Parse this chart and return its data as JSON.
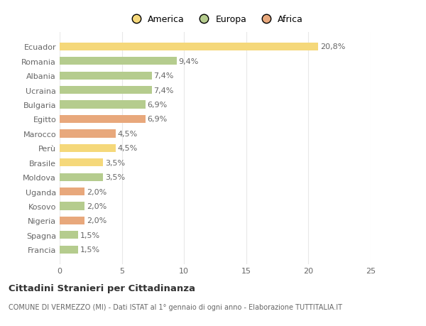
{
  "categories": [
    "Francia",
    "Spagna",
    "Nigeria",
    "Kosovo",
    "Uganda",
    "Moldova",
    "Brasile",
    "Perù",
    "Marocco",
    "Egitto",
    "Bulgaria",
    "Ucraina",
    "Albania",
    "Romania",
    "Ecuador"
  ],
  "values": [
    1.5,
    1.5,
    2.0,
    2.0,
    2.0,
    3.5,
    3.5,
    4.5,
    4.5,
    6.9,
    6.9,
    7.4,
    7.4,
    9.4,
    20.8
  ],
  "labels": [
    "1,5%",
    "1,5%",
    "2,0%",
    "2,0%",
    "2,0%",
    "3,5%",
    "3,5%",
    "4,5%",
    "4,5%",
    "6,9%",
    "6,9%",
    "7,4%",
    "7,4%",
    "9,4%",
    "20,8%"
  ],
  "colors": [
    "#b5cc8e",
    "#b5cc8e",
    "#e8a87c",
    "#b5cc8e",
    "#e8a87c",
    "#b5cc8e",
    "#f5d87a",
    "#f5d87a",
    "#e8a87c",
    "#e8a87c",
    "#b5cc8e",
    "#b5cc8e",
    "#b5cc8e",
    "#b5cc8e",
    "#f5d87a"
  ],
  "legend": [
    {
      "label": "America",
      "color": "#f5d87a"
    },
    {
      "label": "Europa",
      "color": "#b5cc8e"
    },
    {
      "label": "Africa",
      "color": "#e8a87c"
    }
  ],
  "xlim": [
    0,
    25
  ],
  "xticks": [
    0,
    5,
    10,
    15,
    20,
    25
  ],
  "title": "Cittadini Stranieri per Cittadinanza",
  "subtitle": "COMUNE DI VERMEZZO (MI) - Dati ISTAT al 1° gennaio di ogni anno - Elaborazione TUTTITALIA.IT",
  "bg_color": "#ffffff",
  "grid_color": "#e8e8e8",
  "label_fontsize": 8,
  "tick_fontsize": 8,
  "bar_height": 0.55
}
